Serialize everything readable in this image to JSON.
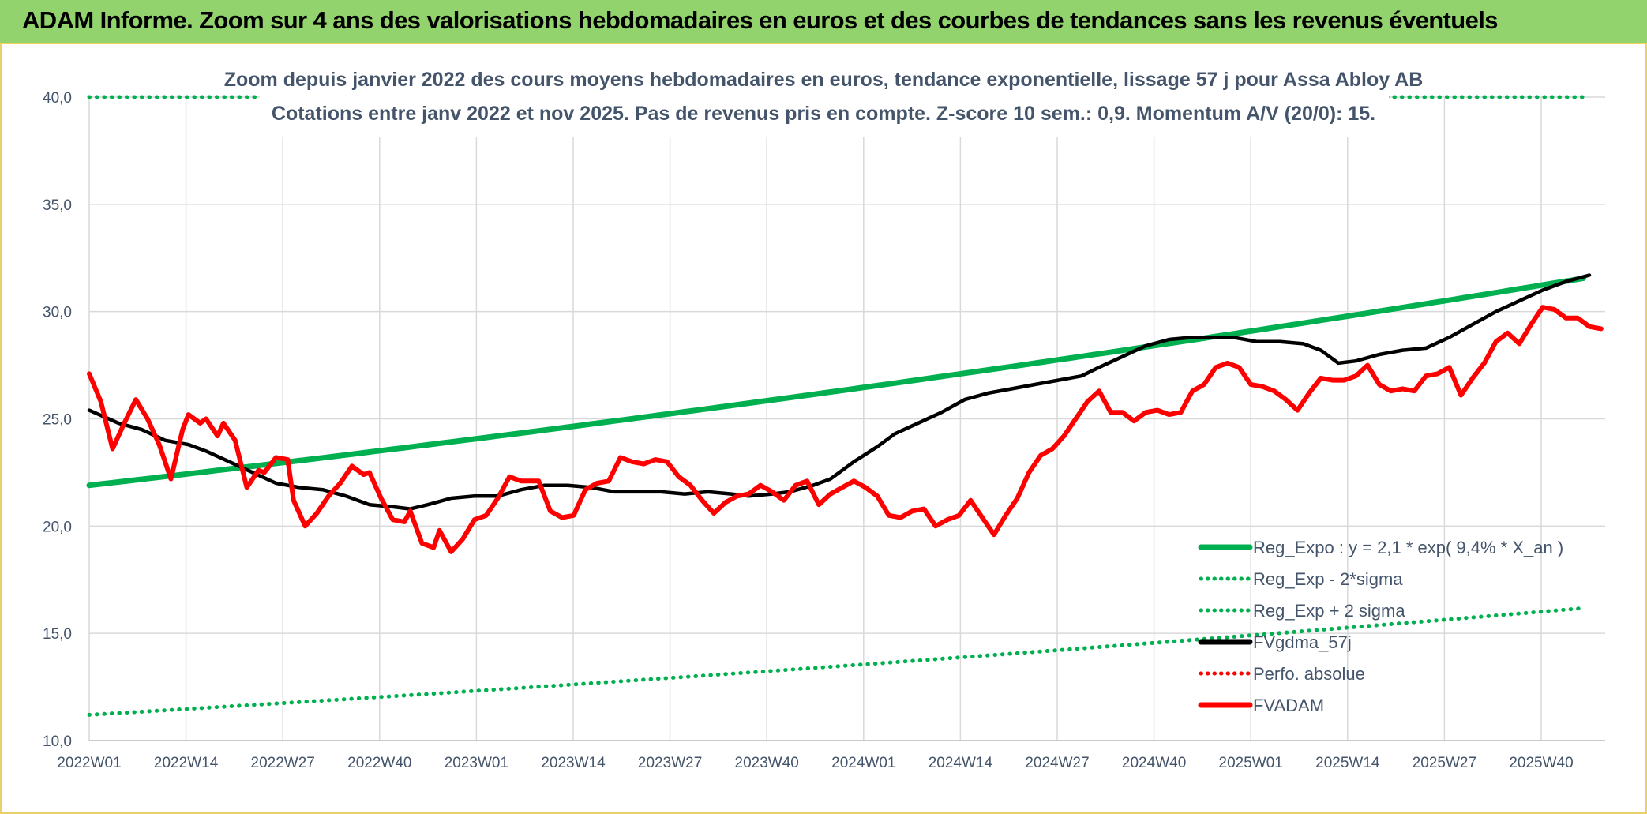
{
  "banner": {
    "title": "ADAM Informe. Zoom sur 4 ans des valorisations hebdomadaires en euros et des courbes de tendances sans les revenus éventuels"
  },
  "colors": {
    "banner_bg": "#92d36e",
    "trend_green": "#00b050",
    "price_red": "#ff0000",
    "smooth_black": "#000000",
    "text_gray": "#44546a",
    "grid": "#d9d9d9"
  },
  "chart_data": {
    "type": "line",
    "title_line1": "Zoom depuis janvier 2022 des cours moyens hebdomadaires en euros, tendance exponentielle, lissage 57 j pour Assa Abloy AB",
    "title_line2": "Cotations entre janv 2022 et nov 2025. Pas de revenus pris en compte. Z-score 10 sem.: 0,9. Momentum A/V (20/0): 15.",
    "ylim": [
      10,
      40
    ],
    "yticks": [
      "10,0",
      "15,0",
      "20,0",
      "25,0",
      "30,0",
      "35,0",
      "40,0"
    ],
    "xtick_labels": [
      "2022W01",
      "2022W14",
      "2022W27",
      "2022W40",
      "2023W01",
      "2023W14",
      "2023W27",
      "2023W40",
      "2024W01",
      "2024W14",
      "2024W27",
      "2024W40",
      "2025W01",
      "2025W14",
      "2025W27",
      "2025W40"
    ],
    "grid": true,
    "legend_position": "bottom-right",
    "legend": [
      {
        "label": "Reg_Expo : y = 2,1 * exp( 9,4% *  X_an )",
        "style": "solid",
        "color": "#00b050"
      },
      {
        "label": "Reg_Exp - 2*sigma",
        "style": "dotted",
        "color": "#00b050"
      },
      {
        "label": "Reg_Exp + 2 sigma",
        "style": "dotted",
        "color": "#00b050"
      },
      {
        "label": "FVgdma_57j",
        "style": "solid",
        "color": "#000000"
      },
      {
        "label": "Perfo. absolue",
        "style": "dotted",
        "color": "#ff0000"
      },
      {
        "label": "FVADAM",
        "style": "solid",
        "color": "#ff0000"
      }
    ],
    "series": [
      {
        "name": "Reg_Expo : y = 2,1 * exp( 9,4% *  X_an )",
        "x_weeks": [
          0,
          202
        ],
        "y_start": 21.9,
        "y_end": 31.6
      },
      {
        "name": "Reg_Exp - 2*sigma",
        "x_weeks": [
          0,
          202
        ],
        "y_start": 11.2,
        "y_end": 16.2
      },
      {
        "name": "Reg_Exp + 2 sigma",
        "x_weeks": [
          0,
          202
        ],
        "y_start": 40.0,
        "y_end": 40.0
      },
      {
        "name": "FVgdma_57j",
        "points": [
          [
            0,
            25.4
          ],
          [
            5,
            24.8
          ],
          [
            9,
            24.5
          ],
          [
            13,
            24.0
          ],
          [
            17,
            23.8
          ],
          [
            20,
            23.5
          ],
          [
            24,
            23.0
          ],
          [
            28,
            22.5
          ],
          [
            32,
            22.0
          ],
          [
            36,
            21.8
          ],
          [
            40,
            21.7
          ],
          [
            44,
            21.4
          ],
          [
            48,
            21.0
          ],
          [
            52,
            20.9
          ],
          [
            55,
            20.8
          ],
          [
            58,
            21.0
          ],
          [
            62,
            21.3
          ],
          [
            66,
            21.4
          ],
          [
            70,
            21.4
          ],
          [
            74,
            21.7
          ],
          [
            78,
            21.9
          ],
          [
            82,
            21.9
          ],
          [
            86,
            21.8
          ],
          [
            90,
            21.6
          ],
          [
            94,
            21.6
          ],
          [
            98,
            21.6
          ],
          [
            102,
            21.5
          ],
          [
            106,
            21.6
          ],
          [
            110,
            21.5
          ],
          [
            113,
            21.4
          ],
          [
            117,
            21.5
          ],
          [
            120,
            21.6
          ],
          [
            124,
            21.9
          ],
          [
            127,
            22.2
          ],
          [
            131,
            23.0
          ],
          [
            135,
            23.7
          ],
          [
            138,
            24.3
          ],
          [
            142,
            24.8
          ],
          [
            146,
            25.3
          ],
          [
            150,
            25.9
          ],
          [
            154,
            26.2
          ],
          [
            158,
            26.4
          ],
          [
            162,
            26.6
          ],
          [
            166,
            26.8
          ],
          [
            170,
            27.0
          ],
          [
            173,
            27.4
          ],
          [
            177,
            27.9
          ],
          [
            181,
            28.4
          ],
          [
            185,
            28.7
          ],
          [
            189,
            28.8
          ],
          [
            193,
            28.8
          ],
          [
            196,
            28.8
          ],
          [
            200,
            28.6
          ],
          [
            204,
            28.6
          ],
          [
            208,
            28.5
          ],
          [
            211,
            28.2
          ],
          [
            214,
            27.6
          ],
          [
            217,
            27.7
          ],
          [
            221,
            28.0
          ],
          [
            225,
            28.2
          ],
          [
            229,
            28.3
          ],
          [
            233,
            28.8
          ],
          [
            237,
            29.4
          ],
          [
            241,
            30.0
          ],
          [
            245,
            30.5
          ],
          [
            249,
            31.0
          ],
          [
            253,
            31.4
          ],
          [
            257,
            31.7
          ]
        ]
      },
      {
        "name": "FVADAM",
        "points": [
          [
            0,
            27.1
          ],
          [
            2,
            25.8
          ],
          [
            4,
            23.6
          ],
          [
            6,
            24.8
          ],
          [
            8,
            25.9
          ],
          [
            10,
            25.0
          ],
          [
            12,
            23.8
          ],
          [
            14,
            22.2
          ],
          [
            16,
            24.5
          ],
          [
            17,
            25.2
          ],
          [
            19,
            24.8
          ],
          [
            20,
            25.0
          ],
          [
            22,
            24.2
          ],
          [
            23,
            24.8
          ],
          [
            25,
            24.0
          ],
          [
            27,
            21.8
          ],
          [
            29,
            22.6
          ],
          [
            30,
            22.5
          ],
          [
            32,
            23.2
          ],
          [
            34,
            23.1
          ],
          [
            35,
            21.2
          ],
          [
            37,
            20.0
          ],
          [
            39,
            20.6
          ],
          [
            41,
            21.4
          ],
          [
            43,
            22.0
          ],
          [
            45,
            22.8
          ],
          [
            47,
            22.4
          ],
          [
            48,
            22.5
          ],
          [
            50,
            21.3
          ],
          [
            52,
            20.3
          ],
          [
            54,
            20.2
          ],
          [
            55,
            20.7
          ],
          [
            57,
            19.2
          ],
          [
            59,
            19.0
          ],
          [
            60,
            19.8
          ],
          [
            62,
            18.8
          ],
          [
            64,
            19.4
          ],
          [
            66,
            20.3
          ],
          [
            68,
            20.5
          ],
          [
            70,
            21.3
          ],
          [
            72,
            22.3
          ],
          [
            74,
            22.1
          ],
          [
            77,
            22.1
          ],
          [
            79,
            20.7
          ],
          [
            81,
            20.4
          ],
          [
            83,
            20.5
          ],
          [
            85,
            21.7
          ],
          [
            87,
            22.0
          ],
          [
            89,
            22.1
          ],
          [
            91,
            23.2
          ],
          [
            93,
            23.0
          ],
          [
            95,
            22.9
          ],
          [
            97,
            23.1
          ],
          [
            99,
            23.0
          ],
          [
            101,
            22.3
          ],
          [
            103,
            21.9
          ],
          [
            105,
            21.2
          ],
          [
            107,
            20.6
          ],
          [
            109,
            21.1
          ],
          [
            111,
            21.4
          ],
          [
            113,
            21.5
          ],
          [
            115,
            21.9
          ],
          [
            117,
            21.6
          ],
          [
            119,
            21.2
          ],
          [
            121,
            21.9
          ],
          [
            123,
            22.1
          ],
          [
            125,
            21.0
          ],
          [
            127,
            21.5
          ],
          [
            129,
            21.8
          ],
          [
            131,
            22.1
          ],
          [
            133,
            21.8
          ],
          [
            135,
            21.4
          ],
          [
            137,
            20.5
          ],
          [
            139,
            20.4
          ],
          [
            141,
            20.7
          ],
          [
            143,
            20.8
          ],
          [
            145,
            20.0
          ],
          [
            147,
            20.3
          ],
          [
            149,
            20.5
          ],
          [
            151,
            21.2
          ],
          [
            153,
            20.4
          ],
          [
            155,
            19.6
          ],
          [
            157,
            20.5
          ],
          [
            159,
            21.3
          ],
          [
            161,
            22.5
          ],
          [
            163,
            23.3
          ],
          [
            165,
            23.6
          ],
          [
            167,
            24.2
          ],
          [
            169,
            25.0
          ],
          [
            171,
            25.8
          ],
          [
            173,
            26.3
          ],
          [
            175,
            25.3
          ],
          [
            177,
            25.3
          ],
          [
            179,
            24.9
          ],
          [
            181,
            25.3
          ],
          [
            183,
            25.4
          ],
          [
            185,
            25.2
          ],
          [
            187,
            25.3
          ],
          [
            189,
            26.3
          ],
          [
            191,
            26.6
          ],
          [
            193,
            27.4
          ],
          [
            195,
            27.6
          ],
          [
            197,
            27.4
          ],
          [
            199,
            26.6
          ],
          [
            201,
            26.5
          ],
          [
            203,
            26.3
          ],
          [
            205,
            25.9
          ],
          [
            207,
            25.4
          ],
          [
            209,
            26.2
          ],
          [
            211,
            26.9
          ],
          [
            213,
            26.8
          ],
          [
            215,
            26.8
          ],
          [
            217,
            27.0
          ],
          [
            219,
            27.5
          ],
          [
            221,
            26.6
          ],
          [
            223,
            26.3
          ],
          [
            225,
            26.4
          ],
          [
            227,
            26.3
          ],
          [
            229,
            27.0
          ],
          [
            231,
            27.1
          ],
          [
            233,
            27.4
          ],
          [
            235,
            26.1
          ],
          [
            237,
            26.9
          ],
          [
            239,
            27.6
          ],
          [
            241,
            28.6
          ],
          [
            243,
            29.0
          ],
          [
            245,
            28.5
          ],
          [
            247,
            29.4
          ],
          [
            249,
            30.2
          ],
          [
            251,
            30.1
          ],
          [
            253,
            29.7
          ],
          [
            255,
            29.7
          ],
          [
            257,
            29.3
          ],
          [
            259,
            29.2
          ]
        ]
      }
    ]
  }
}
